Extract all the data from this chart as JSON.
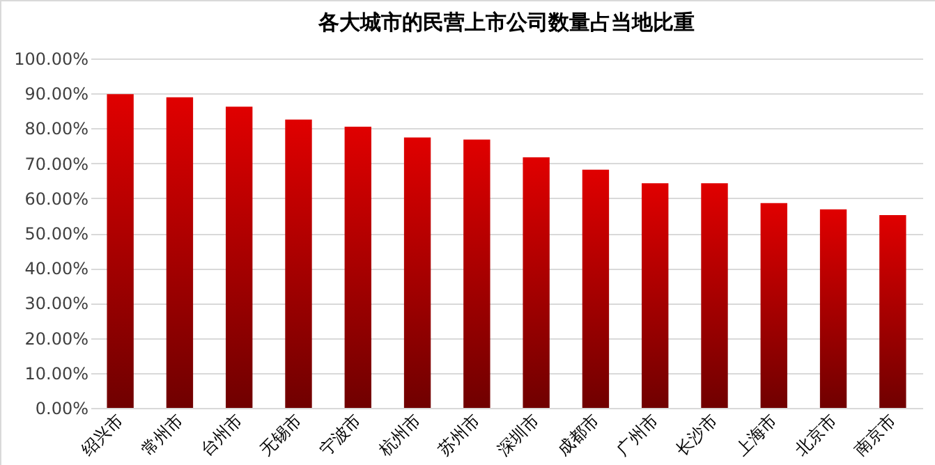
{
  "chart_data": {
    "type": "bar",
    "title": "各大城市的民营上市公司数量占当地比重",
    "categories": [
      "绍兴市",
      "常州市",
      "台州市",
      "无锡市",
      "宁波市",
      "杭州市",
      "苏州市",
      "深圳市",
      "成都市",
      "广州市",
      "长沙市",
      "上海市",
      "北京市",
      "南京市"
    ],
    "values": [
      89.8,
      88.9,
      86.2,
      82.5,
      80.5,
      77.4,
      76.8,
      71.7,
      68.2,
      64.3,
      64.3,
      58.6,
      56.8,
      55.2
    ],
    "color": "#e00000",
    "ylim": [
      0,
      100
    ],
    "yticks": [
      {
        "value": 0,
        "label": "0.00%"
      },
      {
        "value": 10,
        "label": "10.00%"
      },
      {
        "value": 20,
        "label": "20.00%"
      },
      {
        "value": 30,
        "label": "30.00%"
      },
      {
        "value": 40,
        "label": "40.00%"
      },
      {
        "value": 50,
        "label": "50.00%"
      },
      {
        "value": 60,
        "label": "60.00%"
      },
      {
        "value": 70,
        "label": "70.00%"
      },
      {
        "value": 80,
        "label": "80.00%"
      },
      {
        "value": 90,
        "label": "90.00%"
      },
      {
        "value": 100,
        "label": "100.00%"
      }
    ],
    "grid": true
  }
}
